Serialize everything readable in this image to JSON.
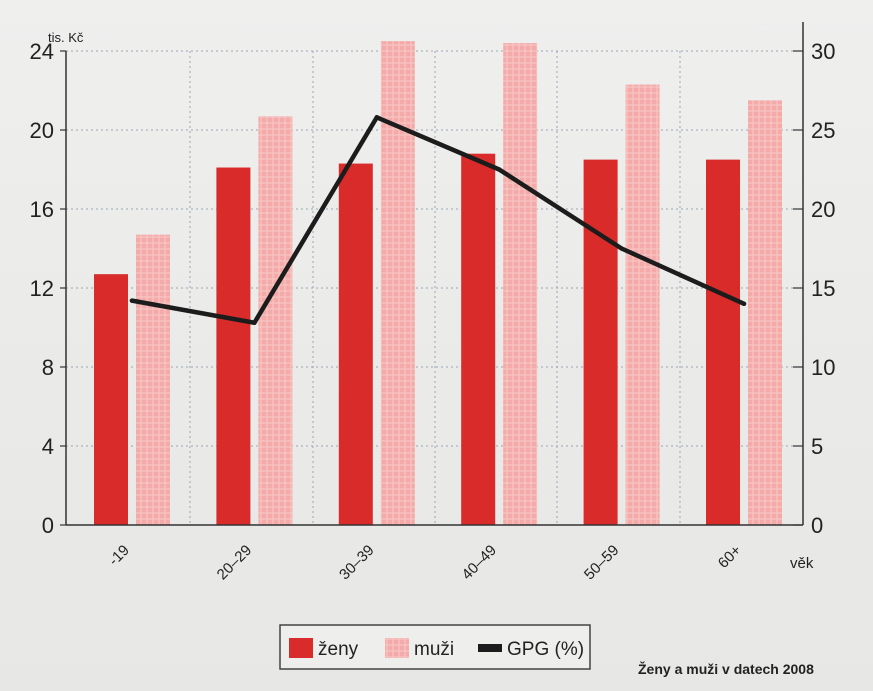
{
  "chart_data": {
    "type": "bar",
    "categories": [
      "-19",
      "20–29",
      "30–39",
      "40–49",
      "50–59",
      "60+"
    ],
    "series": [
      {
        "name": "ženy",
        "type": "bar",
        "axis": "left",
        "values": [
          12.7,
          18.1,
          18.3,
          18.8,
          18.5,
          18.5
        ]
      },
      {
        "name": "muži",
        "type": "bar",
        "axis": "left",
        "values": [
          14.7,
          20.7,
          24.5,
          24.4,
          22.3,
          21.5
        ]
      },
      {
        "name": "GPG (%)",
        "type": "line",
        "axis": "right",
        "values": [
          14.2,
          12.8,
          25.8,
          22.5,
          17.5,
          14.0
        ]
      }
    ],
    "xlabel": "věk",
    "ylabel": "tis. Kč",
    "ylim": [
      0,
      24
    ],
    "y_ticks": [
      0,
      4,
      8,
      12,
      16,
      20,
      24
    ],
    "y2lim": [
      0,
      30
    ],
    "y2_ticks": [
      0,
      5,
      10,
      15,
      20,
      25,
      30
    ],
    "grid": true,
    "legend_position": "bottom-center"
  },
  "colors": {
    "zeny": "#d92b2a",
    "muzi": "#f3aaa8",
    "gpg": "#1c1c1c",
    "grid": "#9aa7b4"
  },
  "source": "Ženy a muži v datech 2008"
}
